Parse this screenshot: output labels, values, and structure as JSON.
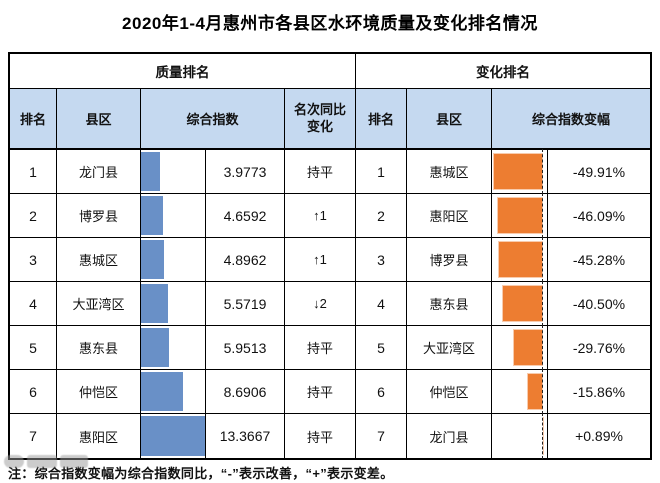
{
  "title": "2020年1-4月惠州市各县区水环境质量及变化排名情况",
  "note": "注：综合指数变幅为综合指数同比，“-”表示改善，“+”表示变差。",
  "quality": {
    "group_label": "质量排名",
    "col_rank": "排名",
    "col_district": "县区",
    "col_index": "综合指数",
    "col_change_line1": "名次同比",
    "col_change_line2": "变化",
    "bar_max": 13.3667,
    "bar_color": "#6990C7",
    "rows": [
      {
        "rank": "1",
        "district": "龙门县",
        "index": 3.9773,
        "index_label": "3.9773",
        "change": "持平"
      },
      {
        "rank": "2",
        "district": "博罗县",
        "index": 4.6592,
        "index_label": "4.6592",
        "change": "↑1"
      },
      {
        "rank": "3",
        "district": "惠城区",
        "index": 4.8962,
        "index_label": "4.8962",
        "change": "↑1"
      },
      {
        "rank": "4",
        "district": "大亚湾区",
        "index": 5.5719,
        "index_label": "5.5719",
        "change": "↓2"
      },
      {
        "rank": "5",
        "district": "惠东县",
        "index": 5.9513,
        "index_label": "5.9513",
        "change": "持平"
      },
      {
        "rank": "6",
        "district": "仲恺区",
        "index": 8.6906,
        "index_label": "8.6906",
        "change": "持平"
      },
      {
        "rank": "7",
        "district": "惠阳区",
        "index": 13.3667,
        "index_label": "13.3667",
        "change": "持平"
      }
    ]
  },
  "change": {
    "group_label": "变化排名",
    "col_rank": "排名",
    "col_district": "县区",
    "col_delta": "综合指数变幅",
    "axis_min": -49.91,
    "axis_max": 0.89,
    "bar_color": "#ED7D31",
    "rows": [
      {
        "rank": "1",
        "district": "惠城区",
        "delta": -49.91,
        "delta_label": "-49.91%"
      },
      {
        "rank": "2",
        "district": "惠阳区",
        "delta": -46.09,
        "delta_label": "-46.09%"
      },
      {
        "rank": "3",
        "district": "博罗县",
        "delta": -45.28,
        "delta_label": "-45.28%"
      },
      {
        "rank": "4",
        "district": "惠东县",
        "delta": -40.5,
        "delta_label": "-40.50%"
      },
      {
        "rank": "5",
        "district": "大亚湾区",
        "delta": -29.76,
        "delta_label": "-29.76%"
      },
      {
        "rank": "6",
        "district": "仲恺区",
        "delta": -15.86,
        "delta_label": "-15.86%"
      },
      {
        "rank": "7",
        "district": "龙门县",
        "delta": 0.89,
        "delta_label": "+0.89%"
      }
    ]
  },
  "chart_data": [
    {
      "type": "bar",
      "orientation": "horizontal",
      "title": "质量排名 — 综合指数（in-cell data bars）",
      "categories": [
        "龙门县",
        "博罗县",
        "惠城区",
        "大亚湾区",
        "惠东县",
        "仲恺区",
        "惠阳区"
      ],
      "values": [
        3.9773,
        4.6592,
        4.8962,
        5.5719,
        5.9513,
        8.6906,
        13.3667
      ],
      "annotations": [
        "持平",
        "↑1",
        "↑1",
        "↓2",
        "持平",
        "持平",
        "持平"
      ],
      "xlabel": "综合指数",
      "ylabel": "县区",
      "xlim": [
        0,
        13.3667
      ],
      "bar_color": "#6990C7",
      "grid": false,
      "legend": "none"
    },
    {
      "type": "bar",
      "orientation": "horizontal",
      "title": "变化排名 — 综合指数变幅（in-cell data bars, dashed zero axis）",
      "categories": [
        "惠城区",
        "惠阳区",
        "博罗县",
        "惠东县",
        "大亚湾区",
        "仲恺区",
        "龙门县"
      ],
      "values": [
        -49.91,
        -46.09,
        -45.28,
        -40.5,
        -29.76,
        -15.86,
        0.89
      ],
      "xlabel": "综合指数变幅 (%)",
      "ylabel": "县区",
      "xlim": [
        -49.91,
        0.89
      ],
      "bar_color": "#ED7D31",
      "grid": false,
      "legend": "none"
    }
  ]
}
